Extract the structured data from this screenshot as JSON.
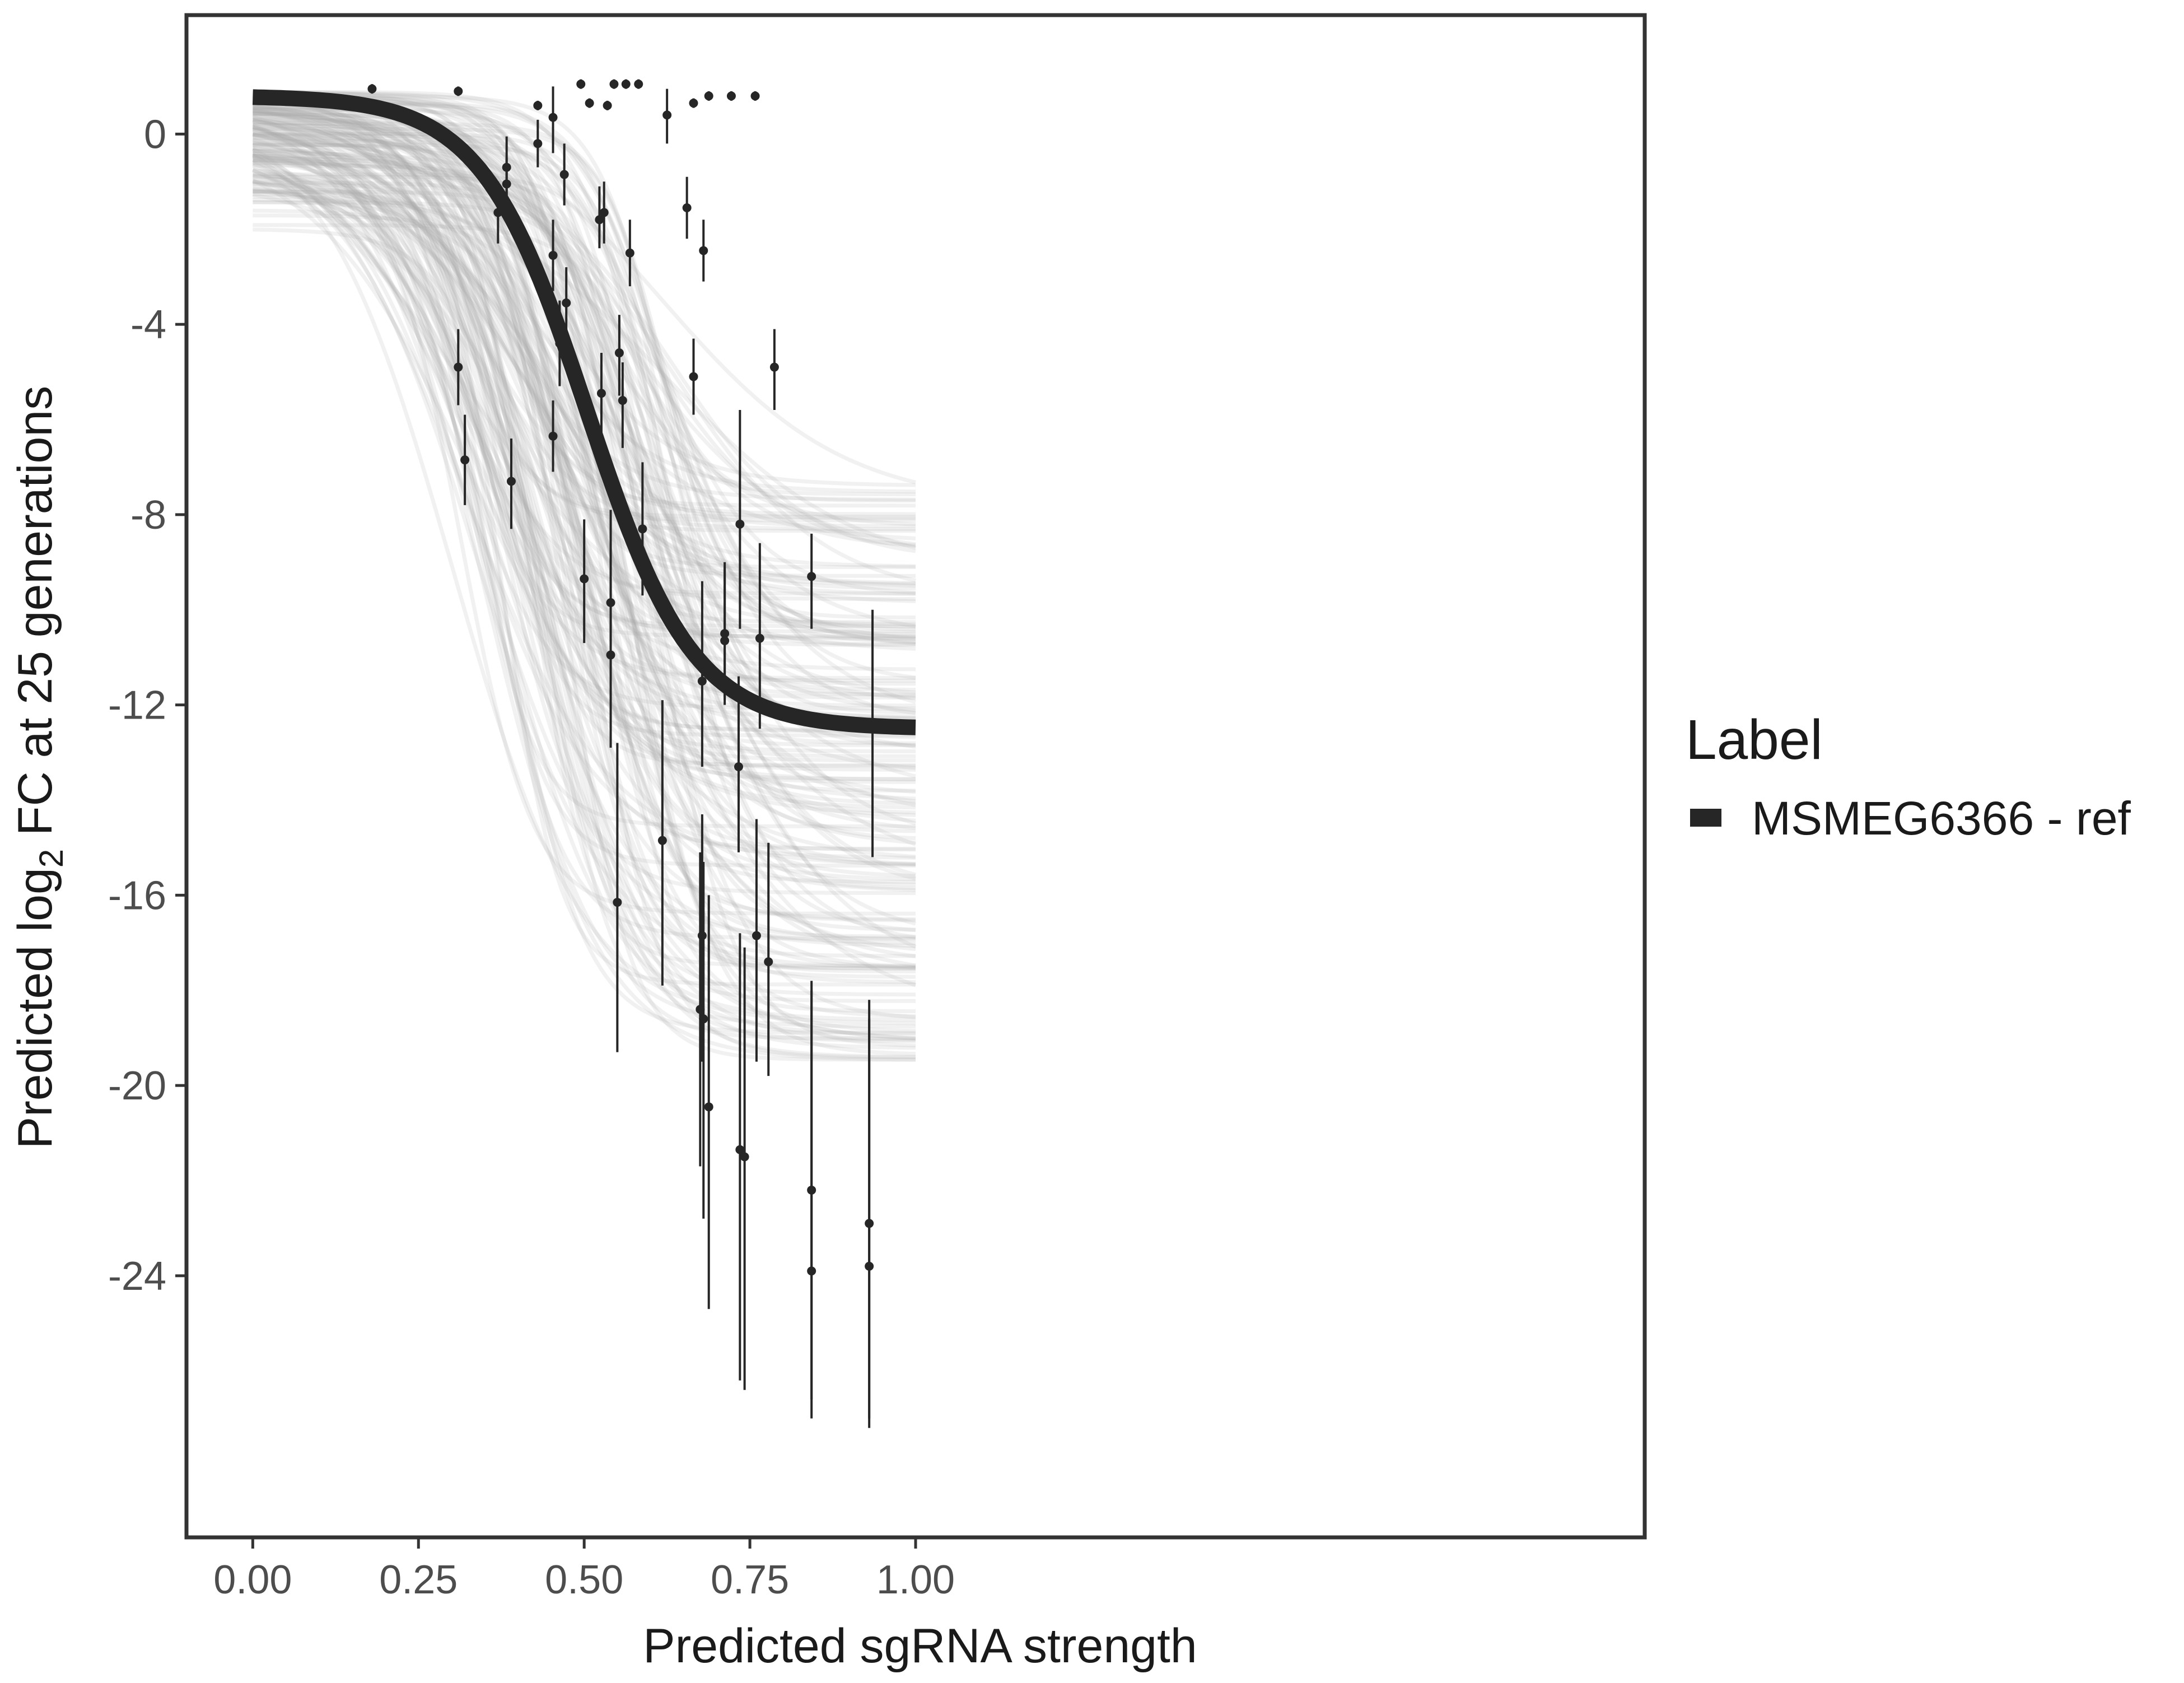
{
  "chart_data": {
    "type": "line",
    "title": "",
    "xlabel": "Predicted sgRNA strength",
    "ylabel_parts": {
      "prefix": "Predicted  log",
      "subscript": "2",
      "suffix": " FC at 25 generations"
    },
    "xlim": [
      -0.1,
      2.1
    ],
    "ylim": [
      -29.5,
      2.5
    ],
    "xdomain": [
      0.0,
      1.0
    ],
    "x_ticks": [
      {
        "value": 0.0,
        "label": "0.00"
      },
      {
        "value": 0.25,
        "label": "0.25"
      },
      {
        "value": 0.5,
        "label": "0.50"
      },
      {
        "value": 0.75,
        "label": "0.75"
      },
      {
        "value": 1.0,
        "label": "1.00"
      }
    ],
    "y_ticks": [
      {
        "value": 0,
        "label": "0"
      },
      {
        "value": -4,
        "label": "-4"
      },
      {
        "value": -8,
        "label": "-8"
      },
      {
        "value": -12,
        "label": "-12"
      },
      {
        "value": -16,
        "label": "-16"
      },
      {
        "value": -20,
        "label": "-20"
      },
      {
        "value": -24,
        "label": "-24"
      }
    ],
    "grid": false,
    "legend": {
      "title": "Label",
      "position": "right",
      "entries": [
        {
          "label": "MSMEG6366 - ref",
          "color": "#262626"
        }
      ]
    },
    "fit_curve": {
      "name": "MSMEG6366 - ref",
      "upper": 0.8,
      "lower": -12.5,
      "midpoint": 0.505,
      "slope": 12.5,
      "color": "#262626"
    },
    "posterior_curves": {
      "count": 180,
      "color": "#a9a9a9",
      "upper_range": [
        -2.4,
        0.9
      ],
      "lower_range": [
        -19.5,
        -7.2
      ],
      "midpoint_range": [
        0.3,
        0.64
      ],
      "slope_range": [
        6.5,
        22
      ]
    },
    "points": [
      {
        "x": 0.18,
        "y": 0.95,
        "lo": 0.85,
        "hi": 1.05
      },
      {
        "x": 0.31,
        "y": 0.9,
        "lo": 0.8,
        "hi": 1.0
      },
      {
        "x": 0.31,
        "y": -4.9,
        "lo": -5.7,
        "hi": -4.1
      },
      {
        "x": 0.32,
        "y": -6.85,
        "lo": -7.8,
        "hi": -5.9
      },
      {
        "x": 0.37,
        "y": -1.65,
        "lo": -2.3,
        "hi": -1.0
      },
      {
        "x": 0.383,
        "y": -0.7,
        "lo": -1.3,
        "hi": -0.05
      },
      {
        "x": 0.383,
        "y": -1.05,
        "lo": -1.6,
        "hi": -0.5
      },
      {
        "x": 0.39,
        "y": -7.3,
        "lo": -8.3,
        "hi": -6.4
      },
      {
        "x": 0.43,
        "y": 0.6,
        "lo": 0.5,
        "hi": 0.7
      },
      {
        "x": 0.43,
        "y": -0.2,
        "lo": -0.7,
        "hi": 0.3
      },
      {
        "x": 0.453,
        "y": 0.35,
        "lo": -0.4,
        "hi": 1.0
      },
      {
        "x": 0.453,
        "y": -2.55,
        "lo": -3.3,
        "hi": -1.8
      },
      {
        "x": 0.453,
        "y": -6.35,
        "lo": -7.1,
        "hi": -5.6
      },
      {
        "x": 0.463,
        "y": -4.4,
        "lo": -5.3,
        "hi": -3.5
      },
      {
        "x": 0.47,
        "y": -0.85,
        "lo": -1.5,
        "hi": -0.2
      },
      {
        "x": 0.473,
        "y": -3.55,
        "lo": -4.4,
        "hi": -2.8
      },
      {
        "x": 0.495,
        "y": 1.05,
        "lo": 0.95,
        "hi": 1.15
      },
      {
        "x": 0.5,
        "y": -9.35,
        "lo": -10.7,
        "hi": -8.1
      },
      {
        "x": 0.508,
        "y": 0.65,
        "lo": 0.55,
        "hi": 0.75
      },
      {
        "x": 0.523,
        "y": -1.8,
        "lo": -2.4,
        "hi": -1.1
      },
      {
        "x": 0.526,
        "y": -5.45,
        "lo": -6.3,
        "hi": -4.6
      },
      {
        "x": 0.53,
        "y": -1.65,
        "lo": -2.3,
        "hi": -1.0
      },
      {
        "x": 0.535,
        "y": 0.6,
        "lo": 0.5,
        "hi": 0.7
      },
      {
        "x": 0.54,
        "y": -9.85,
        "lo": -11.2,
        "hi": -8.6
      },
      {
        "x": 0.54,
        "y": -10.95,
        "lo": -12.9,
        "hi": -7.9
      },
      {
        "x": 0.545,
        "y": 1.05,
        "lo": 0.95,
        "hi": 1.15
      },
      {
        "x": 0.55,
        "y": -16.15,
        "lo": -19.3,
        "hi": -12.8
      },
      {
        "x": 0.553,
        "y": -4.6,
        "lo": -5.5,
        "hi": -3.8
      },
      {
        "x": 0.558,
        "y": -5.6,
        "lo": -6.6,
        "hi": -4.8
      },
      {
        "x": 0.563,
        "y": 1.05,
        "lo": 0.95,
        "hi": 1.15
      },
      {
        "x": 0.569,
        "y": -2.5,
        "lo": -3.2,
        "hi": -1.8
      },
      {
        "x": 0.582,
        "y": 1.05,
        "lo": 0.95,
        "hi": 1.15
      },
      {
        "x": 0.588,
        "y": -8.3,
        "lo": -9.7,
        "hi": -6.9
      },
      {
        "x": 0.618,
        "y": -14.85,
        "lo": -17.9,
        "hi": -11.9
      },
      {
        "x": 0.625,
        "y": 0.4,
        "lo": -0.2,
        "hi": 0.95
      },
      {
        "x": 0.655,
        "y": -1.55,
        "lo": -2.2,
        "hi": -0.9
      },
      {
        "x": 0.665,
        "y": -5.1,
        "lo": -5.9,
        "hi": -4.3
      },
      {
        "x": 0.665,
        "y": 0.65,
        "lo": 0.55,
        "hi": 0.75
      },
      {
        "x": 0.675,
        "y": -18.4,
        "lo": -21.7,
        "hi": -15.1
      },
      {
        "x": 0.678,
        "y": -11.5,
        "lo": -13.3,
        "hi": -9.4
      },
      {
        "x": 0.678,
        "y": -16.85,
        "lo": -19.5,
        "hi": -14.3
      },
      {
        "x": 0.68,
        "y": -2.45,
        "lo": -3.1,
        "hi": -1.8
      },
      {
        "x": 0.68,
        "y": -18.6,
        "lo": -22.8,
        "hi": -15.3
      },
      {
        "x": 0.688,
        "y": 0.8,
        "lo": 0.7,
        "hi": 0.9
      },
      {
        "x": 0.688,
        "y": -20.45,
        "lo": -24.7,
        "hi": -16.0
      },
      {
        "x": 0.712,
        "y": -10.5,
        "lo": -12.0,
        "hi": -9.0
      },
      {
        "x": 0.712,
        "y": -10.65,
        "lo": -11.9,
        "hi": -9.1
      },
      {
        "x": 0.722,
        "y": 0.8,
        "lo": 0.7,
        "hi": 0.9
      },
      {
        "x": 0.733,
        "y": -13.3,
        "lo": -15.1,
        "hi": -11.4
      },
      {
        "x": 0.735,
        "y": -8.2,
        "lo": -10.4,
        "hi": -5.8
      },
      {
        "x": 0.735,
        "y": -21.35,
        "lo": -26.2,
        "hi": -16.8
      },
      {
        "x": 0.742,
        "y": -21.5,
        "lo": -26.4,
        "hi": -17.1
      },
      {
        "x": 0.758,
        "y": 0.8,
        "lo": 0.7,
        "hi": 0.9
      },
      {
        "x": 0.76,
        "y": -16.85,
        "lo": -19.5,
        "hi": -14.4
      },
      {
        "x": 0.765,
        "y": -10.6,
        "lo": -12.5,
        "hi": -8.6
      },
      {
        "x": 0.778,
        "y": -17.4,
        "lo": -19.8,
        "hi": -14.9
      },
      {
        "x": 0.787,
        "y": -4.9,
        "lo": -5.8,
        "hi": -4.1
      },
      {
        "x": 0.843,
        "y": -9.3,
        "lo": -10.4,
        "hi": -8.4
      },
      {
        "x": 0.843,
        "y": -22.2,
        "lo": -26.6,
        "hi": -18.0
      },
      {
        "x": 0.843,
        "y": -23.9,
        "lo": -27.0,
        "hi": -17.8
      },
      {
        "x": 0.93,
        "y": -22.9,
        "lo": -27.2,
        "hi": -18.2
      },
      {
        "x": 0.93,
        "y": -23.8,
        "lo": -27.0,
        "hi": -18.6
      },
      {
        "x": 0.935,
        "y": -12.5,
        "lo": -15.2,
        "hi": -10.0
      }
    ]
  }
}
